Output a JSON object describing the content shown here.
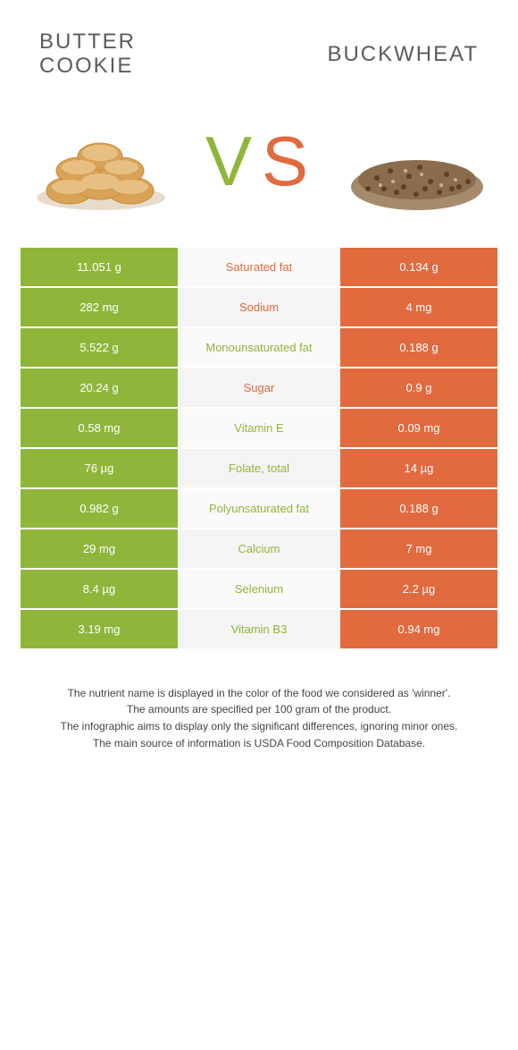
{
  "titles": {
    "left": "BUTTER COOKIE",
    "right": "BUCKWHEAT"
  },
  "vs": {
    "v_color": "#8fb63b",
    "s_color": "#e16a3f",
    "fontsize": 74
  },
  "colors": {
    "left_bar": "#8fb63b",
    "right_bar": "#e16a3f",
    "mid_bg": "#fafafa",
    "mid_bg_alt": "#f4f4f4"
  },
  "rows": [
    {
      "left": "11.051 g",
      "name": "Saturated fat",
      "right": "0.134 g",
      "winner": "right"
    },
    {
      "left": "282 mg",
      "name": "Sodium",
      "right": "4 mg",
      "winner": "right"
    },
    {
      "left": "5.522 g",
      "name": "Monounsaturated fat",
      "right": "0.188 g",
      "winner": "left"
    },
    {
      "left": "20.24 g",
      "name": "Sugar",
      "right": "0.9 g",
      "winner": "right"
    },
    {
      "left": "0.58 mg",
      "name": "Vitamin E",
      "right": "0.09 mg",
      "winner": "left"
    },
    {
      "left": "76 µg",
      "name": "Folate, total",
      "right": "14 µg",
      "winner": "left"
    },
    {
      "left": "0.982 g",
      "name": "Polyunsaturated fat",
      "right": "0.188 g",
      "winner": "left"
    },
    {
      "left": "29 mg",
      "name": "Calcium",
      "right": "7 mg",
      "winner": "left"
    },
    {
      "left": "8.4 µg",
      "name": "Selenium",
      "right": "2.2 µg",
      "winner": "left"
    },
    {
      "left": "3.19 mg",
      "name": "Vitamin B3",
      "right": "0.94 mg",
      "winner": "left"
    }
  ],
  "footer": {
    "l1": "The nutrient name is displayed in the color of the food we considered as 'winner'.",
    "l2": "The amounts are specified per 100 gram of the product.",
    "l3": "The infographic aims to display only the significant differences, ignoring minor ones.",
    "l4": "The main source of information is USDA Food Composition Database."
  }
}
